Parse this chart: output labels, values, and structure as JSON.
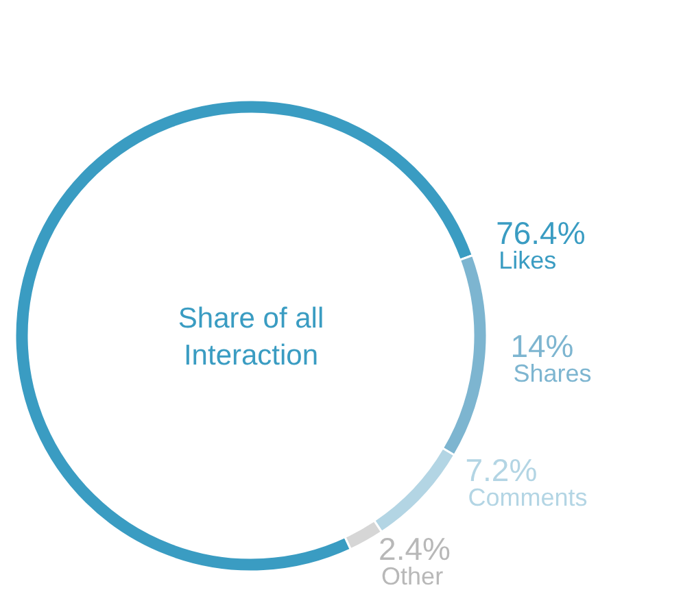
{
  "chart_data": {
    "type": "donut",
    "title": "Share of all Interaction",
    "categories": [
      "Likes",
      "Shares",
      "Comments",
      "Other"
    ],
    "values": [
      76.4,
      14,
      7.2,
      2.4
    ],
    "colors": [
      "#3a9cc2",
      "#7db5d0",
      "#b3d5e4",
      "#d6d6d6"
    ],
    "value_labels": [
      "76.4%",
      "14%",
      "7.2%",
      "2.4%"
    ]
  }
}
